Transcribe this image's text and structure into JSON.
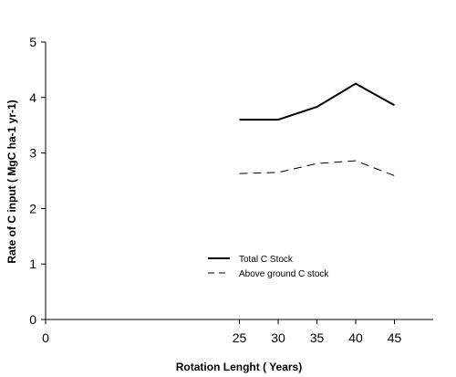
{
  "chart_data": {
    "type": "line",
    "xlabel": "Rotation Lenght ( Years)",
    "ylabel": "Rate of C input ( MgC ha-1 yr-1)",
    "xlim": [
      0,
      50
    ],
    "ylim": [
      0,
      5
    ],
    "x_ticks": [
      "0",
      "25",
      "30",
      "35",
      "40",
      "45"
    ],
    "y_ticks": [
      "0",
      "1",
      "2",
      "3",
      "4",
      "5"
    ],
    "grid": false,
    "legend_position": "lower-center",
    "x": [
      25,
      30,
      35,
      40,
      45
    ],
    "series": [
      {
        "name": "Total C Stock",
        "values": [
          3.6,
          3.6,
          3.83,
          4.25,
          3.86
        ],
        "style": "solid",
        "color": "#000000"
      },
      {
        "name": "Above ground C stock",
        "values": [
          2.63,
          2.65,
          2.81,
          2.86,
          2.59
        ],
        "style": "dashed",
        "color": "#000000"
      }
    ]
  }
}
